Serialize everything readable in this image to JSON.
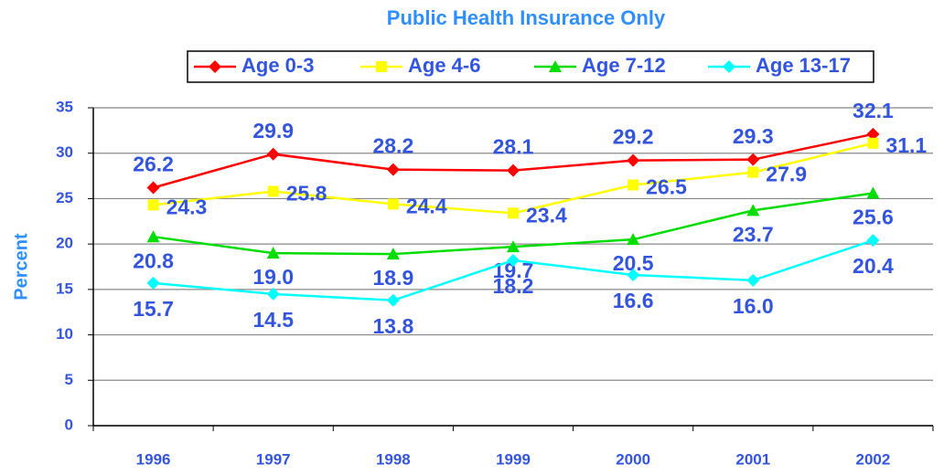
{
  "chart_data": {
    "type": "line",
    "title": "Public Health Insurance Only",
    "y_label": "Percent",
    "categories": [
      "1996",
      "1997",
      "1998",
      "1999",
      "2000",
      "2001",
      "2002"
    ],
    "series": [
      {
        "name": "Age 0-3",
        "color": "#ff0000",
        "values": [
          26.2,
          29.9,
          28.2,
          28.1,
          29.2,
          29.3,
          32.1
        ],
        "value_labels": [
          "26.2",
          "29.9",
          "28.2",
          "28.1",
          "29.2",
          "29.3",
          "32.1"
        ]
      },
      {
        "name": "Age 4-6",
        "color": "#ffff00",
        "values": [
          24.3,
          25.8,
          24.4,
          23.4,
          26.5,
          27.9,
          31.1
        ],
        "value_labels": [
          "24.3",
          "25.8",
          "24.4",
          "23.4",
          "26.5",
          "27.9",
          "31.1"
        ]
      },
      {
        "name": "Age 7-12",
        "color": "#00dd00",
        "values": [
          20.8,
          19.0,
          18.9,
          19.7,
          20.5,
          23.7,
          25.6
        ],
        "value_labels": [
          "20.8",
          "19.0",
          "18.9",
          "19.7",
          "20.5",
          "23.7",
          "25.6"
        ]
      },
      {
        "name": "Age 13-17",
        "color": "#00ffff",
        "values": [
          15.7,
          14.5,
          13.8,
          18.2,
          16.6,
          16.0,
          20.4
        ],
        "value_labels": [
          "15.7",
          "14.5",
          "13.8",
          "18.2",
          "16.6",
          "16.0",
          "20.4"
        ]
      }
    ],
    "ylim": [
      0,
      35
    ],
    "yticks": [
      0,
      5,
      10,
      15,
      20,
      25,
      30,
      35
    ],
    "grid": true,
    "legend": "top"
  }
}
